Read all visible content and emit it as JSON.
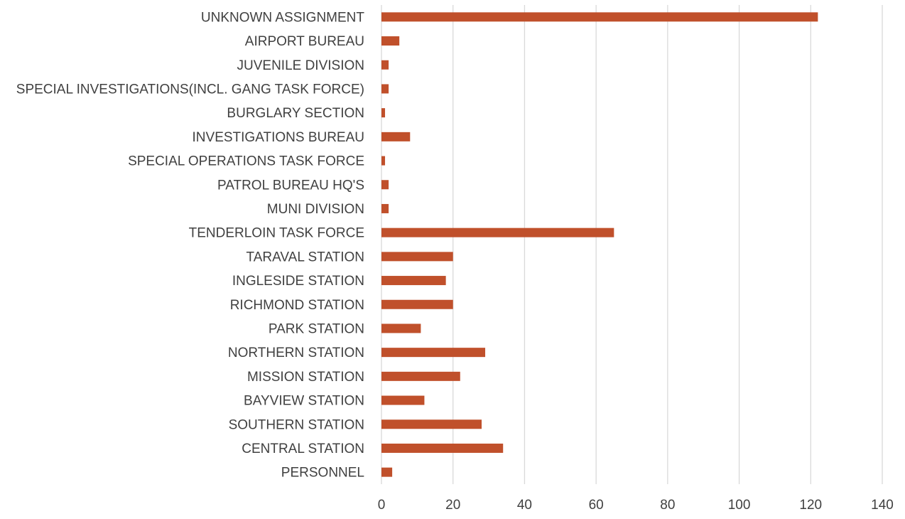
{
  "chart_data": {
    "type": "bar",
    "orientation": "horizontal",
    "categories": [
      "UNKNOWN ASSIGNMENT",
      "AIRPORT BUREAU",
      "JUVENILE DIVISION",
      "SPECIAL INVESTIGATIONS(INCL. GANG TASK FORCE)",
      "BURGLARY SECTION",
      "INVESTIGATIONS BUREAU",
      "SPECIAL OPERATIONS TASK FORCE",
      "PATROL BUREAU HQ'S",
      "MUNI DIVISION",
      "TENDERLOIN TASK FORCE",
      "TARAVAL STATION",
      "INGLESIDE STATION",
      "RICHMOND STATION",
      "PARK STATION",
      "NORTHERN STATION",
      "MISSION STATION",
      "BAYVIEW STATION",
      "SOUTHERN STATION",
      "CENTRAL STATION",
      "PERSONNEL"
    ],
    "values": [
      122,
      5,
      2,
      2,
      1,
      8,
      1,
      2,
      2,
      65,
      20,
      18,
      20,
      11,
      29,
      22,
      12,
      28,
      34,
      3
    ],
    "xlim": [
      0,
      140
    ],
    "xticks": [
      "0",
      "20",
      "40",
      "60",
      "80",
      "100",
      "120",
      "140"
    ],
    "grid": "vertical",
    "bar_color": "#c0502b",
    "grid_color": "#d9d9d9"
  }
}
